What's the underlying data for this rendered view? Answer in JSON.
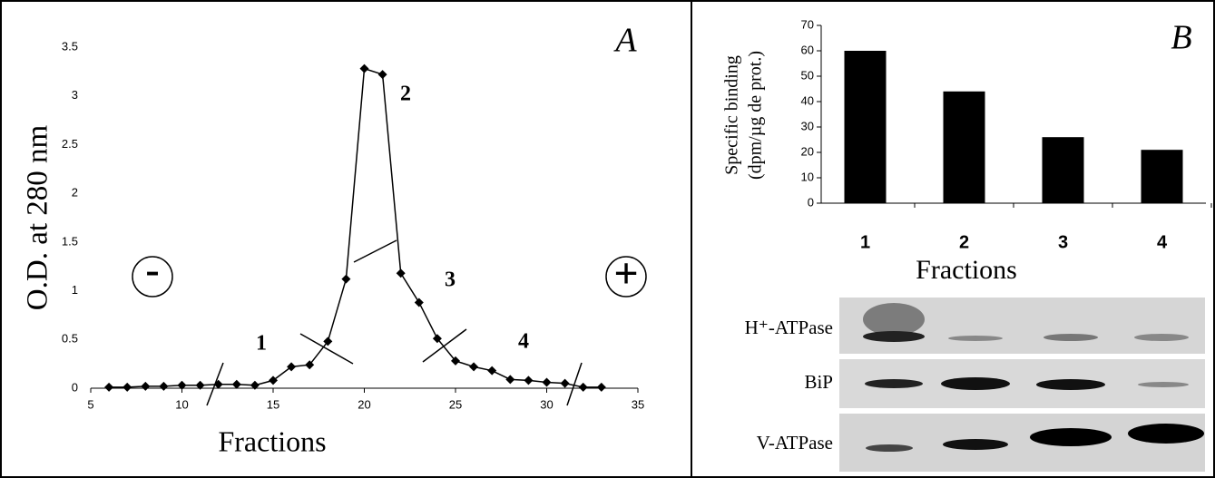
{
  "chart_data": [
    {
      "type": "line",
      "panel_label": "A",
      "xlabel": "Fractions",
      "ylabel": "O.D. at 280 nm",
      "x": [
        6,
        7,
        8,
        9,
        10,
        11,
        12,
        13,
        14,
        15,
        16,
        17,
        18,
        19,
        20,
        21,
        22,
        23,
        24,
        25,
        26,
        27,
        28,
        29,
        30,
        31,
        32,
        33
      ],
      "values": [
        0.01,
        0.01,
        0.02,
        0.02,
        0.03,
        0.03,
        0.04,
        0.04,
        0.03,
        0.08,
        0.22,
        0.24,
        0.48,
        1.12,
        3.28,
        3.22,
        1.18,
        0.88,
        0.51,
        0.28,
        0.22,
        0.18,
        0.09,
        0.08,
        0.06,
        0.05,
        0.01,
        0.01
      ],
      "color": "#000000",
      "xlim": [
        5,
        35
      ],
      "xticks": [
        5,
        10,
        15,
        20,
        25,
        30,
        35
      ],
      "ylim": [
        0,
        3.5
      ],
      "yticks": [
        0,
        0.5,
        1,
        1.5,
        2,
        2.5,
        3,
        3.5
      ],
      "annotations": [
        "1",
        "2",
        "3",
        "4",
        "-",
        "+"
      ]
    },
    {
      "type": "bar",
      "panel_label": "B",
      "xlabel": "Fractions",
      "ylabel": [
        "Specific binding",
        "(dpm/µg de prot.)"
      ],
      "categories": [
        "1",
        "2",
        "3",
        "4"
      ],
      "values": [
        60,
        44,
        26,
        21
      ],
      "color": "#000000",
      "ylim": [
        0,
        70
      ],
      "yticks": [
        0,
        10,
        20,
        30,
        40,
        50,
        60,
        70
      ]
    }
  ],
  "blot_labels": [
    "H⁺-ATPase",
    "BiP",
    "V-ATPase"
  ]
}
